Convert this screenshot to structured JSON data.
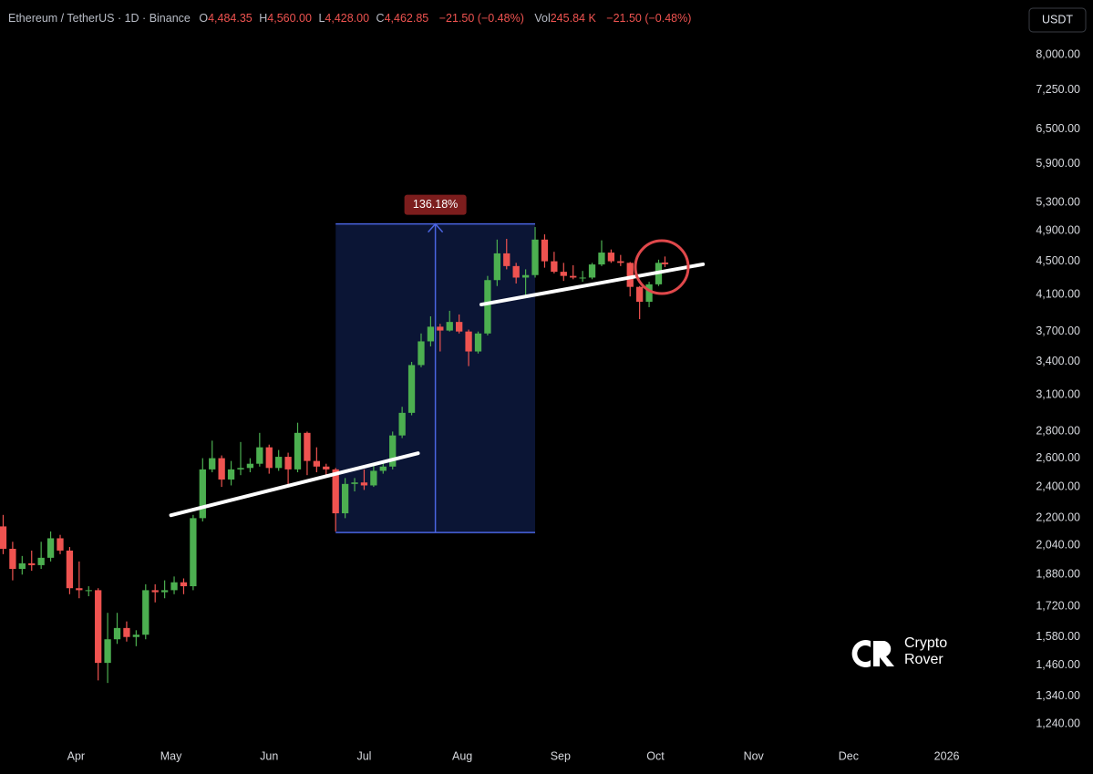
{
  "chart_data": {
    "type": "candlestick",
    "header": {
      "symbol": "Ethereum / TetherUS · 1D · Binance",
      "ohlc": [
        {
          "label": "O",
          "value": "4,484.35"
        },
        {
          "label": "H",
          "value": "4,560.00"
        },
        {
          "label": "L",
          "value": "4,428.00"
        },
        {
          "label": "C",
          "value": "4,462.85"
        }
      ],
      "change": "−21.50 (−0.48%)",
      "volume": {
        "label": "Vol",
        "value": "245.84 K",
        "change": "−21.50 (−0.48%)"
      }
    },
    "currency": "USDT",
    "watermark": [
      "Crypto",
      "Rover"
    ],
    "log_y": true,
    "up_color": "#4caf50",
    "down_color": "#ef5350",
    "xlim": [
      "2025-03-08",
      "2026-01-23"
    ],
    "xticks": [
      {
        "value": "2025-04-01",
        "label": "Apr"
      },
      {
        "value": "2025-05-01",
        "label": "May"
      },
      {
        "value": "2025-06-01",
        "label": "Jun"
      },
      {
        "value": "2025-07-01",
        "label": "Jul"
      },
      {
        "value": "2025-08-01",
        "label": "Aug"
      },
      {
        "value": "2025-09-01",
        "label": "Sep"
      },
      {
        "value": "2025-10-01",
        "label": "Oct"
      },
      {
        "value": "2025-11-01",
        "label": "Nov"
      },
      {
        "value": "2025-12-01",
        "label": "Dec"
      },
      {
        "value": "2026-01-01",
        "label": "2026"
      }
    ],
    "ylim": [
      1176,
      9317
    ],
    "yticks": [
      {
        "value": 1240,
        "label": "1,240.00"
      },
      {
        "value": 1340,
        "label": "1,340.00"
      },
      {
        "value": 1460,
        "label": "1,460.00"
      },
      {
        "value": 1580,
        "label": "1,580.00"
      },
      {
        "value": 1720,
        "label": "1,720.00"
      },
      {
        "value": 1880,
        "label": "1,880.00"
      },
      {
        "value": 2040,
        "label": "2,040.00"
      },
      {
        "value": 2200,
        "label": "2,200.00"
      },
      {
        "value": 2400,
        "label": "2,400.00"
      },
      {
        "value": 2600,
        "label": "2,600.00"
      },
      {
        "value": 2800,
        "label": "2,800.00"
      },
      {
        "value": 3100,
        "label": "3,100.00"
      },
      {
        "value": 3400,
        "label": "3,400.00"
      },
      {
        "value": 3700,
        "label": "3,700.00"
      },
      {
        "value": 4100,
        "label": "4,100.00"
      },
      {
        "value": 4500,
        "label": "4,500.00"
      },
      {
        "value": 4900,
        "label": "4,900.00"
      },
      {
        "value": 5300,
        "label": "5,300.00"
      },
      {
        "value": 5900,
        "label": "5,900.00"
      },
      {
        "value": 6500,
        "label": "6,500.00"
      },
      {
        "value": 7250,
        "label": "7,250.00"
      },
      {
        "value": 8000,
        "label": "8,000.00"
      }
    ],
    "x": [
      "2025-03-09",
      "2025-03-12",
      "2025-03-15",
      "2025-03-18",
      "2025-03-21",
      "2025-03-24",
      "2025-03-27",
      "2025-03-30",
      "2025-04-02",
      "2025-04-05",
      "2025-04-08",
      "2025-04-11",
      "2025-04-14",
      "2025-04-17",
      "2025-04-20",
      "2025-04-23",
      "2025-04-26",
      "2025-04-29",
      "2025-05-02",
      "2025-05-05",
      "2025-05-08",
      "2025-05-11",
      "2025-05-14",
      "2025-05-17",
      "2025-05-20",
      "2025-05-23",
      "2025-05-26",
      "2025-05-29",
      "2025-06-01",
      "2025-06-04",
      "2025-06-07",
      "2025-06-10",
      "2025-06-13",
      "2025-06-16",
      "2025-06-19",
      "2025-06-22",
      "2025-06-25",
      "2025-06-28",
      "2025-07-01",
      "2025-07-04",
      "2025-07-07",
      "2025-07-10",
      "2025-07-13",
      "2025-07-16",
      "2025-07-19",
      "2025-07-22",
      "2025-07-25",
      "2025-07-28",
      "2025-07-31",
      "2025-08-03",
      "2025-08-06",
      "2025-08-09",
      "2025-08-12",
      "2025-08-15",
      "2025-08-18",
      "2025-08-21",
      "2025-08-24",
      "2025-08-27",
      "2025-08-30",
      "2025-09-02",
      "2025-09-05",
      "2025-09-08",
      "2025-09-11",
      "2025-09-14",
      "2025-09-17",
      "2025-09-20",
      "2025-09-23",
      "2025-09-26",
      "2025-09-29",
      "2025-10-02",
      "2025-10-04"
    ],
    "open": [
      2150,
      2020,
      1910,
      1940,
      1930,
      1970,
      2080,
      2010,
      1810,
      1800,
      1800,
      1470,
      1570,
      1620,
      1580,
      1590,
      1800,
      1790,
      1800,
      1840,
      1820,
      2200,
      2520,
      2600,
      2450,
      2520,
      2530,
      2560,
      2680,
      2530,
      2610,
      2520,
      2790,
      2580,
      2540,
      2520,
      2230,
      2420,
      2430,
      2410,
      2510,
      2540,
      2770,
      2950,
      3370,
      3600,
      3750,
      3710,
      3800,
      3700,
      3500,
      3680,
      4270,
      4600,
      4440,
      4300,
      4330,
      4780,
      4500,
      4370,
      4320,
      4300,
      4300,
      4460,
      4610,
      4500,
      4480,
      4190,
      4020,
      4220,
      4484.35
    ],
    "high": [
      2220,
      2060,
      1980,
      2010,
      2060,
      2120,
      2100,
      2030,
      1950,
      1820,
      1810,
      1690,
      1690,
      1650,
      1610,
      1830,
      1830,
      1850,
      1870,
      1860,
      2220,
      2600,
      2730,
      2620,
      2580,
      2720,
      2600,
      2790,
      2700,
      2660,
      2640,
      2870,
      2800,
      2680,
      2560,
      2530,
      2460,
      2460,
      2520,
      2550,
      2580,
      2800,
      3000,
      3400,
      3680,
      3860,
      3780,
      3920,
      3880,
      3720,
      3700,
      4320,
      4780,
      4790,
      4480,
      4400,
      4950,
      4850,
      4620,
      4480,
      4450,
      4380,
      4480,
      4770,
      4650,
      4580,
      4490,
      4200,
      4250,
      4520,
      4560
    ],
    "low": [
      1990,
      1850,
      1880,
      1900,
      1910,
      1950,
      1990,
      1780,
      1760,
      1770,
      1400,
      1390,
      1550,
      1560,
      1540,
      1570,
      1740,
      1760,
      1780,
      1780,
      1800,
      2180,
      2500,
      2400,
      2410,
      2480,
      2500,
      2540,
      2490,
      2510,
      2400,
      2500,
      2480,
      2500,
      2480,
      2120,
      2200,
      2370,
      2380,
      2400,
      2490,
      2520,
      2750,
      2930,
      3350,
      3550,
      3500,
      3700,
      3680,
      3360,
      3480,
      3660,
      4200,
      4400,
      4230,
      4080,
      4300,
      4420,
      4350,
      4260,
      4280,
      4250,
      4280,
      4440,
      4480,
      4440,
      4080,
      3830,
      3960,
      4200,
      4428
    ],
    "close": [
      2020,
      1910,
      1940,
      1930,
      1970,
      2080,
      2010,
      1810,
      1800,
      1800,
      1470,
      1570,
      1620,
      1580,
      1590,
      1800,
      1790,
      1800,
      1840,
      1820,
      2200,
      2520,
      2600,
      2450,
      2520,
      2530,
      2560,
      2680,
      2530,
      2610,
      2520,
      2790,
      2580,
      2540,
      2520,
      2230,
      2420,
      2430,
      2410,
      2510,
      2540,
      2770,
      2950,
      3370,
      3600,
      3750,
      3710,
      3800,
      3700,
      3500,
      3680,
      4270,
      4600,
      4440,
      4300,
      4330,
      4780,
      4500,
      4370,
      4320,
      4300,
      4300,
      4460,
      4610,
      4500,
      4480,
      4190,
      4020,
      4220,
      4480,
      4462.85
    ],
    "measure": {
      "x": [
        "2025-06-22",
        "2025-08-24"
      ],
      "y": [
        2114,
        4993
      ],
      "label": "136.18%"
    },
    "trendlines": [
      {
        "x": [
          "2025-05-01",
          "2025-07-18"
        ],
        "y": [
          2218,
          2636
        ]
      },
      {
        "x": [
          "2025-08-07",
          "2025-10-16"
        ],
        "y": [
          3989,
          4462
        ]
      }
    ],
    "circle": {
      "x": "2025-10-03",
      "y": 4427
    }
  }
}
